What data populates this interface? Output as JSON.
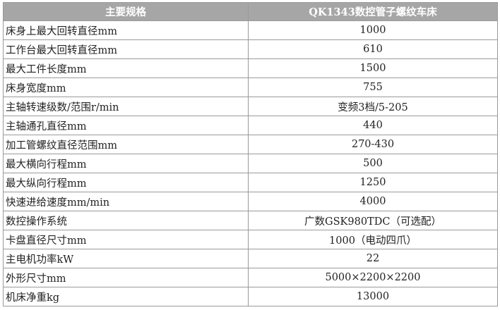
{
  "table": {
    "header": [
      "主要规格",
      "QK1343数控管子螺纹车床"
    ],
    "rows": [
      [
        "床身上最大回转直径mm",
        "1000"
      ],
      [
        "工作台最大回转直径mm",
        "610"
      ],
      [
        "最大工件长度mm",
        "1500"
      ],
      [
        "床身宽度mm",
        "755"
      ],
      [
        "主轴转速级数/范围r/min",
        "变频3档/5-205"
      ],
      [
        "主轴通孔直径mm",
        "440"
      ],
      [
        "加工管螺纹直径范围mm",
        "270-430"
      ],
      [
        "最大横向行程mm",
        "500"
      ],
      [
        "最大纵向行程mm",
        "1250"
      ],
      [
        "快速进给速度mm/min",
        "4000"
      ],
      [
        "数控操作系统",
        "广数GSK980TDC（可选配）"
      ],
      [
        "卡盘直径尺寸mm",
        "1000（电动四爪）"
      ],
      [
        "主电机功率kW",
        "22"
      ],
      [
        "外形尺寸mm",
        "5000×2200×2200"
      ],
      [
        "机床净重kg",
        "13000"
      ]
    ]
  }
}
